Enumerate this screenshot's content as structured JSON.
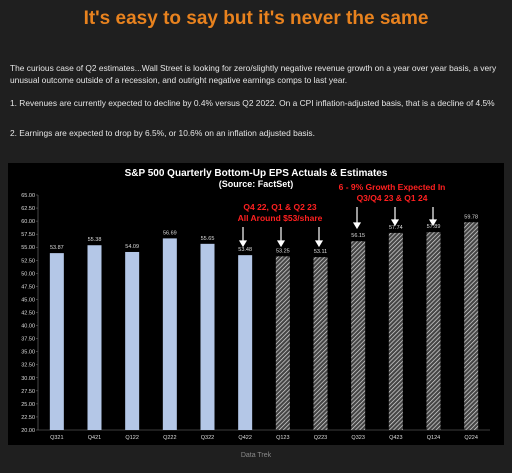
{
  "header": {
    "title": "It's easy to say but it's never the same"
  },
  "paragraphs": [
    "The curious case of Q2 estimates...Wall Street is looking for zero/slightly negative revenue growth on a year over year basis, a very unusual outcome outside of a recession, and outright negative earnings comps to last year.",
    "1. Revenues are currently expected to decline by 0.4% versus Q2 2022. On a CPI inflation-adjusted basis, that is a decline of 4.5%",
    "2. Earnings are expected to drop by 6.5%, or 10.6% on an inflation adjusted basis."
  ],
  "chart_data": {
    "type": "bar",
    "title": "S&P 500 Quarterly Bottom-Up EPS Actuals & Estimates",
    "subtitle": "(Source: FactSet)",
    "categories": [
      "Q321",
      "Q421",
      "Q122",
      "Q222",
      "Q322",
      "Q422",
      "Q123",
      "Q223",
      "Q323",
      "Q423",
      "Q124",
      "Q224"
    ],
    "values": [
      53.87,
      55.38,
      54.09,
      56.69,
      55.65,
      53.48,
      53.25,
      53.11,
      56.15,
      57.74,
      57.89,
      59.78
    ],
    "colors": [
      "#b4c7e7",
      "#b4c7e7",
      "#b4c7e7",
      "#b4c7e7",
      "#b4c7e7",
      "#b4c7e7",
      "#9a9a9a",
      "#9a9a9a",
      "#9a9a9a",
      "#9a9a9a",
      "#9a9a9a",
      "#9a9a9a"
    ],
    "ylim": [
      20,
      65
    ],
    "yticks": [
      {
        "value": 20,
        "label": "20.00"
      },
      {
        "value": 22.5,
        "label": "22.50"
      },
      {
        "value": 25,
        "label": "25.00"
      },
      {
        "value": 27.5,
        "label": "27.50"
      },
      {
        "value": 30,
        "label": "30.00"
      },
      {
        "value": 32.5,
        "label": "32.50"
      },
      {
        "value": 35,
        "label": "35.00"
      },
      {
        "value": 37.5,
        "label": "37.50"
      },
      {
        "value": 40,
        "label": "40.00"
      },
      {
        "value": 42.5,
        "label": "42.50"
      },
      {
        "value": 45,
        "label": "45.00"
      },
      {
        "value": 47.5,
        "label": "47.50"
      },
      {
        "value": 50,
        "label": "50.00"
      },
      {
        "value": 52.5,
        "label": "52.50"
      },
      {
        "value": 55,
        "label": "55.00"
      },
      {
        "value": 57.5,
        "label": "57.50"
      },
      {
        "value": 60,
        "label": "60.00"
      },
      {
        "value": 62.5,
        "label": "62.50"
      },
      {
        "value": 65,
        "label": "65.00"
      }
    ],
    "annotations": [
      [
        "Q4 22, Q1 & Q2 23",
        "All Around $53/share"
      ],
      [
        "6 - 9% Growth Expected In",
        "Q3/Q4 23 & Q1 24"
      ]
    ],
    "grid": false
  },
  "footer": "Data Trek"
}
